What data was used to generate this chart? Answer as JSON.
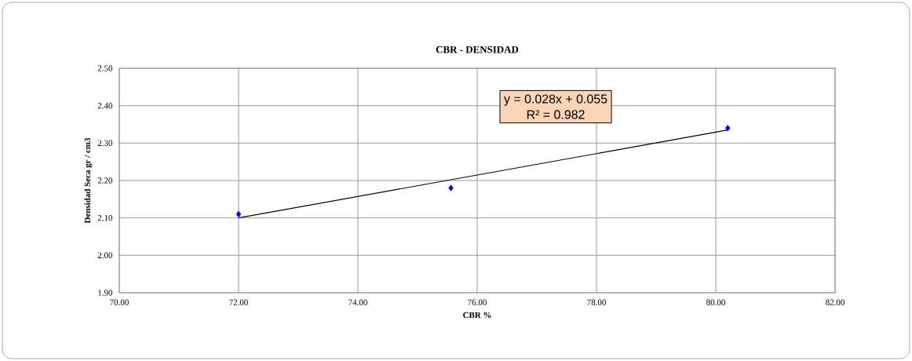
{
  "chart_data": {
    "type": "scatter",
    "title": "CBR - DENSIDAD",
    "xlabel": "CBR  %",
    "ylabel": "Densidad Seca gr / cm3",
    "x": [
      72.0,
      75.56,
      80.2
    ],
    "series": [
      {
        "color": "#0000ff",
        "marker": "diamond",
        "values": [
          2.11,
          2.18,
          2.34
        ]
      },
      {
        "type": "line",
        "color": "#000000",
        "marker": "none",
        "line_style": "solid",
        "x": [
          72.0,
          80.2
        ],
        "values": [
          2.1,
          2.335
        ]
      }
    ],
    "xlim": [
      70,
      82
    ],
    "ylim": [
      1.9,
      2.5
    ],
    "xticks": [
      {
        "value": 70,
        "label": "70.00"
      },
      {
        "value": 72,
        "label": "72.00"
      },
      {
        "value": 74,
        "label": "74.00"
      },
      {
        "value": 76,
        "label": "76.00"
      },
      {
        "value": 78,
        "label": "78.00"
      },
      {
        "value": 80,
        "label": "80.00"
      },
      {
        "value": 82,
        "label": "82.00"
      }
    ],
    "yticks": [
      {
        "value": 1.9,
        "label": "1.90"
      },
      {
        "value": 2.0,
        "label": "2.00"
      },
      {
        "value": 2.1,
        "label": "2.10"
      },
      {
        "value": 2.2,
        "label": "2.20"
      },
      {
        "value": 2.3,
        "label": "2.30"
      },
      {
        "value": 2.4,
        "label": "2.40"
      },
      {
        "value": 2.5,
        "label": "2.50"
      }
    ],
    "grid": true,
    "annotations": [
      "y = 0.028x + 0.055",
      "R² = 0.982"
    ]
  }
}
